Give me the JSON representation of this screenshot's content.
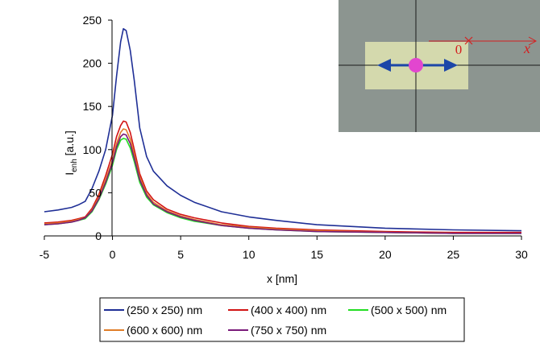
{
  "chart_data": {
    "type": "line",
    "xlabel": "x [nm]",
    "ylabel": {
      "main": "I",
      "sub": "enh",
      "unit": " [a.u.]"
    },
    "xlim": [
      -5,
      30
    ],
    "ylim": [
      0,
      250
    ],
    "xticks": [
      -5,
      0,
      5,
      10,
      15,
      20,
      25,
      30
    ],
    "yticks": [
      0,
      50,
      100,
      150,
      200,
      250
    ],
    "grid": false,
    "legend_position": "bottom",
    "series": [
      {
        "name": "(250 x 250) nm",
        "color": "#1f2f96",
        "x": [
          -5,
          -4,
          -3,
          -2.5,
          -2,
          -1.5,
          -1,
          -0.5,
          0,
          0.3,
          0.6,
          0.8,
          1.0,
          1.3,
          1.6,
          2.0,
          2.5,
          3,
          4,
          5,
          6,
          8,
          10,
          12,
          15,
          20,
          25,
          30
        ],
        "y": [
          28,
          30,
          33,
          36,
          40,
          55,
          75,
          100,
          140,
          185,
          225,
          240,
          238,
          215,
          180,
          125,
          92,
          75,
          58,
          47,
          39,
          28,
          22,
          18,
          13,
          9,
          7,
          6
        ]
      },
      {
        "name": "(400 x 400) nm",
        "color": "#d21414",
        "x": [
          -5,
          -4,
          -3,
          -2.5,
          -2,
          -1.5,
          -1,
          -0.5,
          0,
          0.3,
          0.6,
          0.8,
          1.0,
          1.3,
          1.6,
          2.0,
          2.5,
          3,
          4,
          5,
          6,
          8,
          10,
          12,
          15,
          20,
          25,
          30
        ],
        "y": [
          15,
          16,
          18,
          20,
          22,
          32,
          48,
          70,
          95,
          115,
          128,
          133,
          132,
          120,
          100,
          72,
          52,
          42,
          31,
          25,
          21,
          15,
          11,
          9,
          7,
          5,
          4,
          4
        ]
      },
      {
        "name": "(500 x 500) nm",
        "color": "#22dd22",
        "x": [
          -5,
          -4,
          -3,
          -2.5,
          -2,
          -1.5,
          -1,
          -0.5,
          0,
          0.3,
          0.6,
          0.8,
          1.0,
          1.3,
          1.6,
          2.0,
          2.5,
          3,
          4,
          5,
          6,
          8,
          10,
          12,
          15,
          20,
          25,
          30
        ],
        "y": [
          13,
          14,
          16,
          18,
          20,
          28,
          42,
          60,
          82,
          100,
          111,
          113,
          112,
          102,
          86,
          62,
          45,
          36,
          27,
          21,
          17,
          12,
          9,
          7,
          5,
          4,
          3,
          3
        ]
      },
      {
        "name": "(600 x 600) nm",
        "color": "#e07d28",
        "x": [
          -5,
          -4,
          -3,
          -2.5,
          -2,
          -1.5,
          -1,
          -0.5,
          0,
          0.3,
          0.6,
          0.8,
          1.0,
          1.3,
          1.6,
          2.0,
          2.5,
          3,
          4,
          5,
          6,
          8,
          10,
          12,
          15,
          20,
          25,
          30
        ],
        "y": [
          14,
          15,
          17,
          19,
          21,
          30,
          45,
          65,
          88,
          107,
          120,
          124,
          123,
          112,
          94,
          68,
          49,
          39,
          29,
          23,
          19,
          13,
          10,
          8,
          6,
          4,
          3,
          3
        ]
      },
      {
        "name": "(750 x 750) nm",
        "color": "#7a1a7a",
        "x": [
          -5,
          -4,
          -3,
          -2.5,
          -2,
          -1.5,
          -1,
          -0.5,
          0,
          0.3,
          0.6,
          0.8,
          1.0,
          1.3,
          1.6,
          2.0,
          2.5,
          3,
          4,
          5,
          6,
          8,
          10,
          12,
          15,
          20,
          25,
          30
        ],
        "y": [
          13,
          14,
          16,
          18,
          21,
          29,
          43,
          62,
          85,
          103,
          115,
          118,
          117,
          107,
          90,
          65,
          47,
          37,
          28,
          22,
          18,
          12,
          9,
          7,
          5,
          4,
          3,
          3
        ]
      }
    ]
  },
  "inset": {
    "axis_x_label": "x",
    "axis_origin_label": "0",
    "colors": {
      "background": "#8c9590",
      "rectangle": "#d4d9ad",
      "particle": "#e246cf",
      "arrow": "#1c46a8",
      "axis": "#d42020",
      "crosshair": "#1a1a1a"
    }
  }
}
